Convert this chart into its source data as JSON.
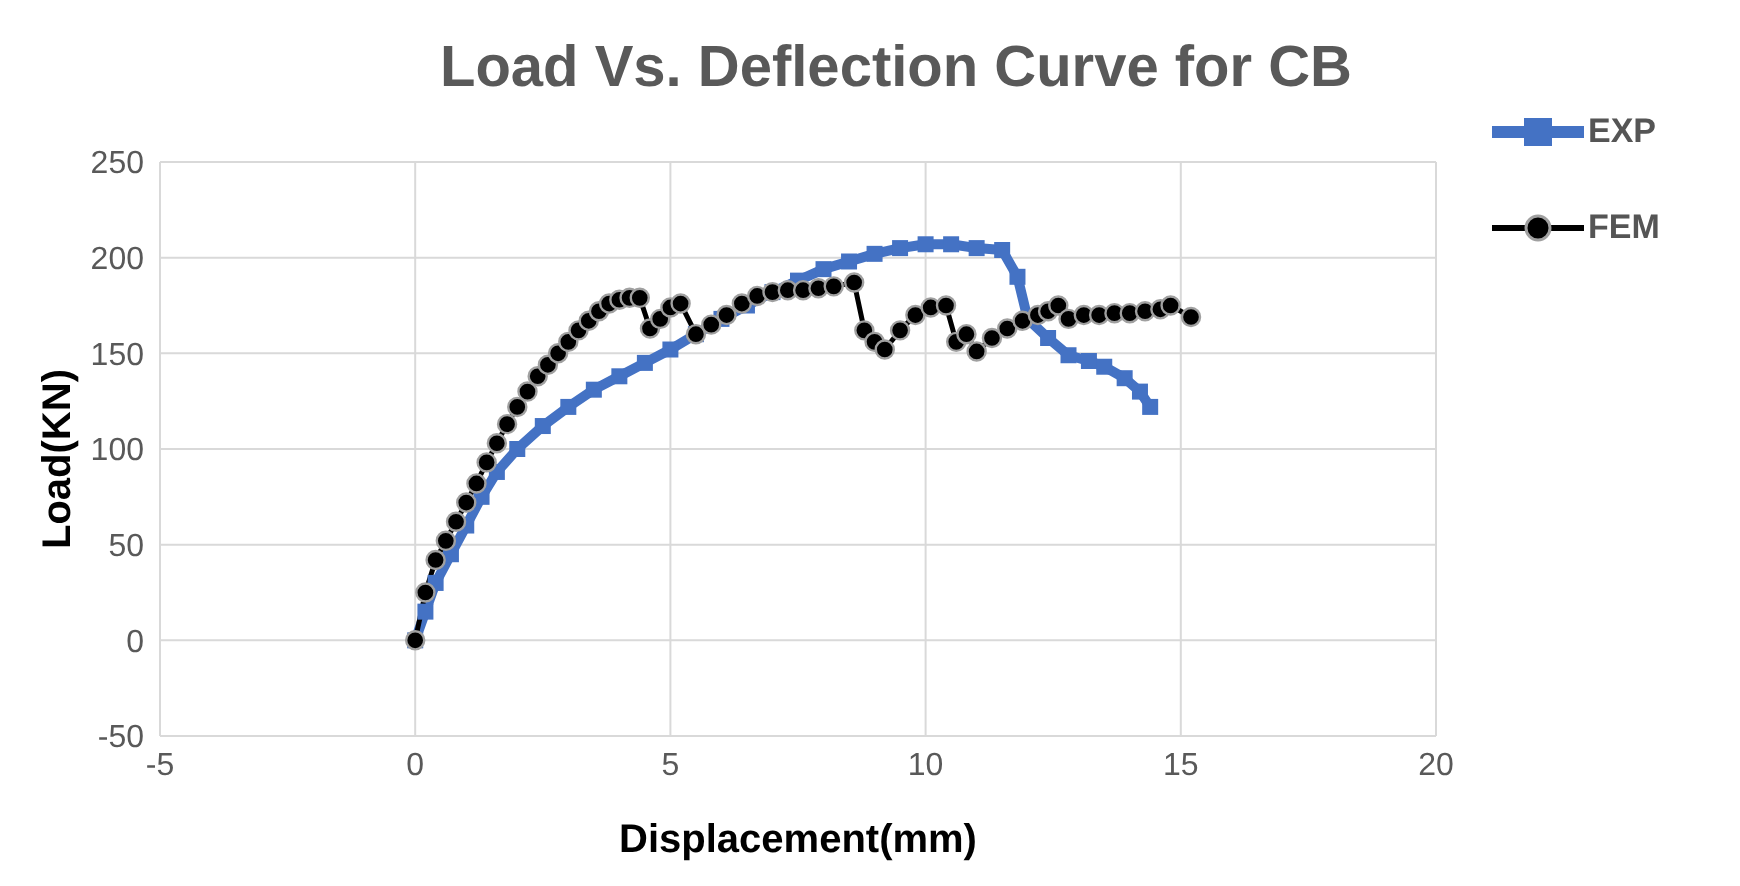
{
  "chart_data": {
    "type": "line",
    "title": "Load Vs. Deflection Curve for CB",
    "xlabel": "Displacement(mm)",
    "ylabel": "Load(KN)",
    "xlim": [
      -5,
      20
    ],
    "xticks": [
      -5,
      0,
      5,
      10,
      15,
      20
    ],
    "ylim": [
      -50,
      250
    ],
    "yticks": [
      -50,
      0,
      50,
      100,
      150,
      200,
      250
    ],
    "grid": true,
    "legend": "top right",
    "series": [
      {
        "name": "EXP",
        "color": "#4472c4",
        "marker": "square",
        "x": [
          0,
          0.2,
          0.4,
          0.7,
          1.0,
          1.3,
          1.6,
          2.0,
          2.5,
          3.0,
          3.5,
          4.0,
          4.5,
          5.0,
          5.5,
          6.0,
          6.5,
          7.0,
          7.5,
          8.0,
          8.5,
          9.0,
          9.5,
          10.0,
          10.5,
          11.0,
          11.5,
          11.8,
          12.0,
          12.4,
          12.8,
          13.2,
          13.5,
          13.9,
          14.2,
          14.4
        ],
        "values": [
          0,
          15,
          30,
          45,
          60,
          75,
          88,
          100,
          112,
          122,
          131,
          138,
          145,
          152,
          160,
          168,
          175,
          182,
          188,
          194,
          198,
          202,
          205,
          207,
          207,
          205,
          204,
          190,
          168,
          158,
          149,
          146,
          143,
          137,
          130,
          122
        ]
      },
      {
        "name": "FEM",
        "color": "#000000",
        "marker": "circle",
        "x": [
          0,
          0.2,
          0.4,
          0.6,
          0.8,
          1.0,
          1.2,
          1.4,
          1.6,
          1.8,
          2.0,
          2.2,
          2.4,
          2.6,
          2.8,
          3.0,
          3.2,
          3.4,
          3.6,
          3.8,
          4.0,
          4.2,
          4.4,
          4.6,
          4.8,
          5.0,
          5.2,
          5.5,
          5.8,
          6.1,
          6.4,
          6.7,
          7.0,
          7.3,
          7.6,
          7.9,
          8.2,
          8.6,
          8.8,
          9.0,
          9.2,
          9.5,
          9.8,
          10.1,
          10.4,
          10.6,
          10.8,
          11.0,
          11.3,
          11.6,
          11.9,
          12.2,
          12.4,
          12.6,
          12.8,
          13.1,
          13.4,
          13.7,
          14.0,
          14.3,
          14.6,
          14.8,
          15.2
        ],
        "values": [
          0,
          25,
          42,
          52,
          62,
          72,
          82,
          93,
          103,
          113,
          122,
          130,
          138,
          144,
          150,
          156,
          162,
          167,
          172,
          176,
          178,
          179,
          179,
          163,
          168,
          174,
          176,
          160,
          165,
          170,
          176,
          180,
          182,
          183,
          183,
          184,
          185,
          187,
          162,
          156,
          152,
          162,
          170,
          174,
          175,
          156,
          160,
          151,
          158,
          163,
          167,
          170,
          172,
          175,
          168,
          170,
          170,
          171,
          171,
          172,
          173,
          175,
          169
        ]
      }
    ]
  }
}
